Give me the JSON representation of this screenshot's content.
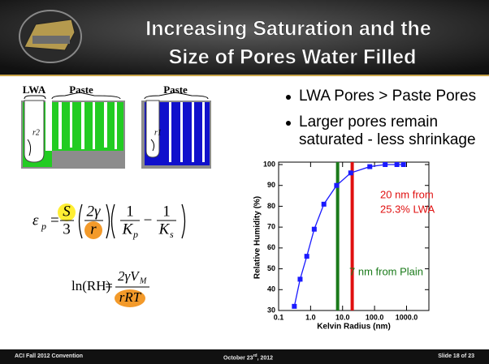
{
  "header": {
    "title_lines": [
      "Increasing Saturation and the",
      "Size of Pores Water Filled"
    ]
  },
  "diagram": {
    "labels": [
      "LWA",
      "Paste",
      "Paste"
    ],
    "radius_labels": [
      "r2",
      "r1"
    ]
  },
  "bullets": [
    "LWA Pores > Paste Pores",
    "Larger pores remain saturated - less shrinkage"
  ],
  "equation_1": {
    "lhs": "ε",
    "lhs_sub": "p",
    "equals": "=",
    "num1": "S",
    "den1": "3",
    "num2": "2γ",
    "den2": "r",
    "num3": "1",
    "den3": "K",
    "den3_sub": "p",
    "minus": "−",
    "num4": "1",
    "den4": "K",
    "den4_sub": "s"
  },
  "equation_2": {
    "lhs": "ln(RH)",
    "equals": "=",
    "num": "2γV",
    "num_sub": "M",
    "den": "rRT"
  },
  "chart_data": {
    "type": "line",
    "x_label": "Kelvin Radius (nm)",
    "y_label": "Relative Humidity (%)",
    "log_x": true,
    "xlim": [
      0.1,
      5000
    ],
    "ylim": [
      30,
      100
    ],
    "xticks": [
      0.1,
      {
        "value": 1,
        "label": "1.0"
      },
      {
        "value": 10,
        "label": "10.0"
      },
      {
        "value": 100,
        "label": "100.0"
      },
      {
        "value": 1000,
        "label": "1000.0"
      }
    ],
    "yticks": [
      30,
      40,
      50,
      60,
      70,
      80,
      90,
      100
    ],
    "x": [
      0.31,
      0.47,
      0.76,
      1.3,
      2.6,
      6.5,
      18,
      71,
      215,
      500,
      800
    ],
    "series": [
      {
        "color": "#1a1aff",
        "values": [
          32,
          45,
          56,
          69,
          81,
          90,
          96,
          99,
          100,
          100,
          100
        ]
      }
    ],
    "ref_lines": [
      {
        "value": 7,
        "color": "#1a7a1a",
        "label": [
          "7 nm from Plain"
        ]
      },
      {
        "value": 20,
        "color": "#e01010",
        "label": [
          "20 nm from",
          "25.3% LWA"
        ]
      }
    ]
  },
  "footer": {
    "left": "ACI Fall 2012 Convention",
    "date": "October 23",
    "date_sup": "rd",
    "date_end": ", 2012",
    "right": "Slide 18 of 23"
  }
}
